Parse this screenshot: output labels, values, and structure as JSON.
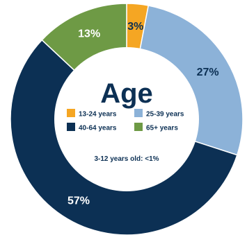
{
  "chart_data": {
    "type": "pie",
    "style": "donut",
    "title": "Age",
    "categories": [
      "13-24 years",
      "25-39 years",
      "40-64 years",
      "65+ years"
    ],
    "values": [
      3,
      27,
      57,
      13
    ],
    "value_labels": [
      "3%",
      "27%",
      "57%",
      "13%"
    ],
    "colors": [
      "#F5A623",
      "#8CB2D8",
      "#0C3054",
      "#6E9A45"
    ],
    "label_colors": [
      "#0C3054",
      "#0C3054",
      "#ffffff",
      "#ffffff"
    ],
    "legend": {
      "placement": "center",
      "items": [
        {
          "label": "13-24 years",
          "color": "#F5A623"
        },
        {
          "label": "25-39 years",
          "color": "#8CB2D8"
        },
        {
          "label": "40-64 years",
          "color": "#0C3054"
        },
        {
          "label": "65+ years",
          "color": "#6E9A45"
        }
      ]
    },
    "annotation": "3-12 years old: <1%",
    "title_color": "#0C3054",
    "text_color": "#0C3054"
  }
}
